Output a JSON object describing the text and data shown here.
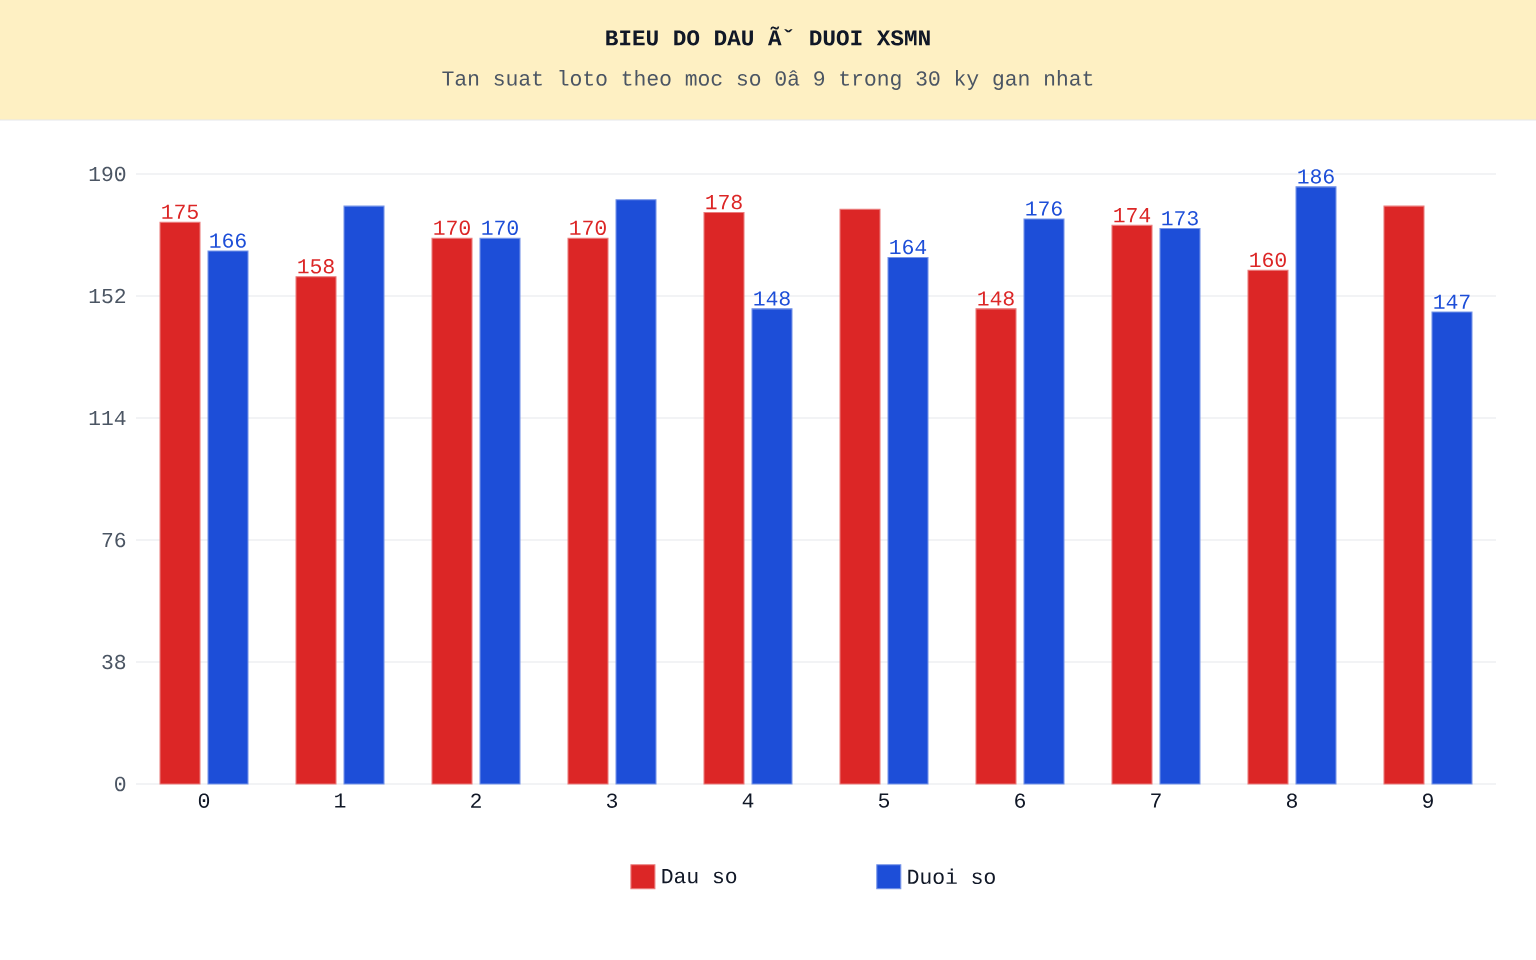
{
  "chart_data": {
    "type": "bar",
    "title": "BIEU DO DAU Ãˇ DUOI XSMN",
    "subtitle": "Tan suat loto theo moc so 0â  9 trong 30 ky gan nhat",
    "categories": [
      "0",
      "1",
      "2",
      "3",
      "4",
      "5",
      "6",
      "7",
      "8",
      "9"
    ],
    "series": [
      {
        "name": "Dau so",
        "color": "#dc2626",
        "values": [
          175,
          158,
          170,
          170,
          178,
          179,
          148,
          174,
          160,
          180
        ],
        "value_labels": [
          "175",
          "158",
          "170",
          "170",
          "178",
          null,
          "148",
          "174",
          "160",
          null
        ]
      },
      {
        "name": "Duoi so",
        "color": "#1d4ed8",
        "values": [
          166,
          180,
          170,
          182,
          148,
          164,
          176,
          173,
          186,
          147
        ],
        "value_labels": [
          "166",
          null,
          "170",
          null,
          "148",
          "164",
          "176",
          "173",
          "186",
          "147"
        ]
      }
    ],
    "ylim": [
      0,
      190
    ],
    "yticks": [
      0,
      38,
      76,
      114,
      152,
      190
    ],
    "grid": "y",
    "legend": "bottom"
  }
}
